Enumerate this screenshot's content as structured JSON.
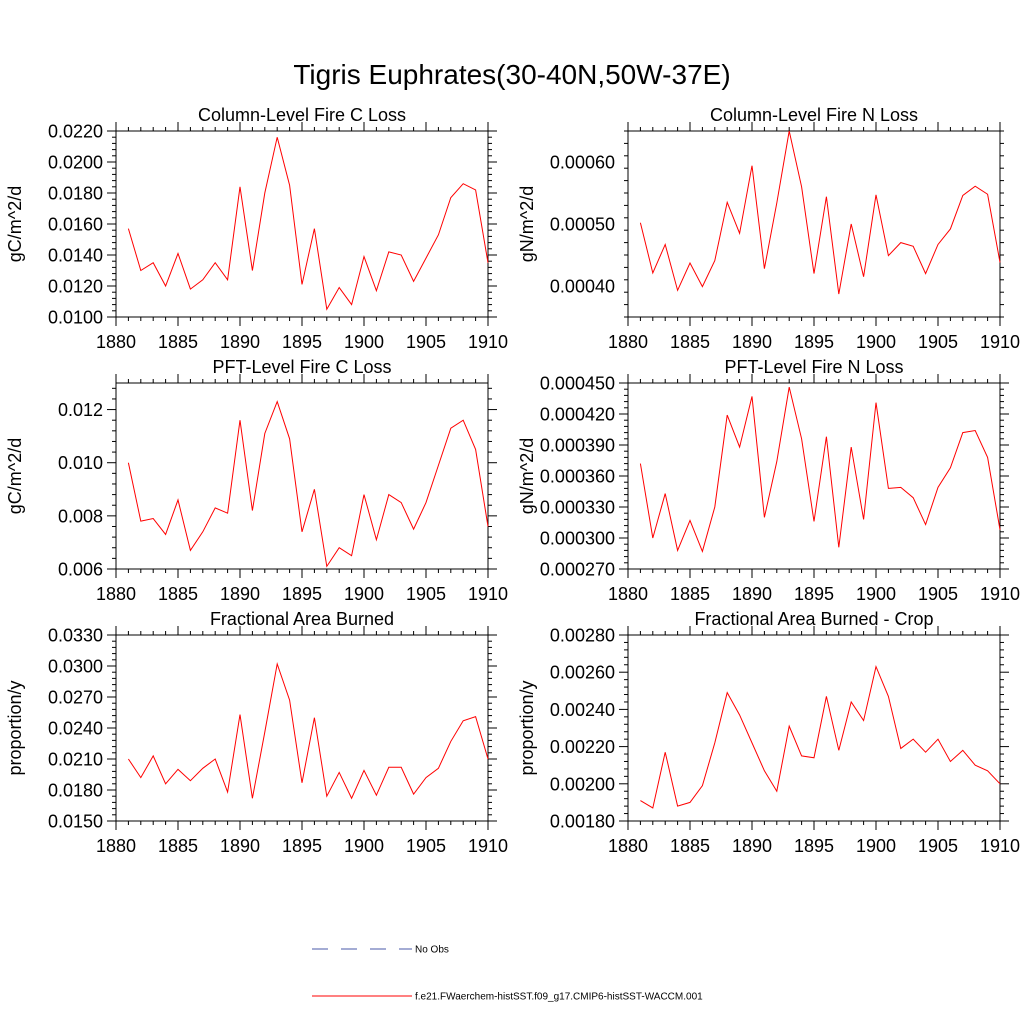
{
  "page": {
    "title": "Tigris Euphrates(30-40N,50W-37E)"
  },
  "legend": {
    "items": [
      {
        "label": "No Obs",
        "style": "dashed",
        "color": "#4a5aa8"
      },
      {
        "label": "f.e21.FWaerchem-histSST.f09_g17.CMIP6-histSST-WACCM.001",
        "style": "solid",
        "color": "#ff0000"
      }
    ]
  },
  "chart_data": [
    {
      "type": "line",
      "title": "Column-Level Fire C Loss",
      "ylabel": "gC/m^2/d",
      "xlim": [
        1880,
        1910
      ],
      "ylim": [
        0.01,
        0.022
      ],
      "xticks": [
        "1880",
        "1885",
        "1890",
        "1895",
        "1900",
        "1905",
        "1910"
      ],
      "yticks": [
        "0.0100",
        "0.0120",
        "0.0140",
        "0.0160",
        "0.0180",
        "0.0200",
        "0.0220"
      ],
      "x": [
        1881,
        1882,
        1883,
        1884,
        1885,
        1886,
        1887,
        1888,
        1889,
        1890,
        1891,
        1892,
        1893,
        1894,
        1895,
        1896,
        1897,
        1898,
        1899,
        1900,
        1901,
        1902,
        1903,
        1904,
        1905,
        1906,
        1907,
        1908,
        1909,
        1910
      ],
      "series": [
        {
          "color": "#ff0000",
          "values": [
            0.0157,
            0.013,
            0.0135,
            0.012,
            0.0141,
            0.0118,
            0.0124,
            0.0135,
            0.0124,
            0.0184,
            0.013,
            0.018,
            0.0216,
            0.0185,
            0.0121,
            0.0157,
            0.0105,
            0.0119,
            0.0108,
            0.0139,
            0.0117,
            0.0142,
            0.014,
            0.0123,
            0.0138,
            0.0153,
            0.0177,
            0.0186,
            0.0182,
            0.0135
          ]
        }
      ]
    },
    {
      "type": "line",
      "title": "Column-Level Fire N Loss",
      "ylabel": "gN/m^2/d",
      "xlim": [
        1880,
        1910
      ],
      "ylim": [
        0.00035,
        0.00065
      ],
      "xticks": [
        "1880",
        "1885",
        "1890",
        "1895",
        "1900",
        "1905",
        "1910"
      ],
      "yticks": [
        "0.00040",
        "0.00050",
        "0.00060"
      ],
      "x": [
        1881,
        1882,
        1883,
        1884,
        1885,
        1886,
        1887,
        1888,
        1889,
        1890,
        1891,
        1892,
        1893,
        1894,
        1895,
        1896,
        1897,
        1898,
        1899,
        1900,
        1901,
        1902,
        1903,
        1904,
        1905,
        1906,
        1907,
        1908,
        1909,
        1910
      ],
      "series": [
        {
          "color": "#ff0000",
          "values": [
            0.000502,
            0.000421,
            0.000467,
            0.000393,
            0.000437,
            0.000399,
            0.000441,
            0.000535,
            0.000485,
            0.000594,
            0.000428,
            0.000534,
            0.00065,
            0.00056,
            0.00042,
            0.000544,
            0.000387,
            0.0005,
            0.000415,
            0.000547,
            0.000449,
            0.00047,
            0.000464,
            0.00042,
            0.000467,
            0.000492,
            0.000546,
            0.000561,
            0.000548,
            0.000438
          ]
        }
      ]
    },
    {
      "type": "line",
      "title": "PFT-Level Fire C Loss",
      "ylabel": "gC/m^2/d",
      "xlim": [
        1880,
        1910
      ],
      "ylim": [
        0.006,
        0.013
      ],
      "xticks": [
        "1880",
        "1885",
        "1890",
        "1895",
        "1900",
        "1905",
        "1910"
      ],
      "yticks": [
        "0.006",
        "0.008",
        "0.010",
        "0.012"
      ],
      "x": [
        1881,
        1882,
        1883,
        1884,
        1885,
        1886,
        1887,
        1888,
        1889,
        1890,
        1891,
        1892,
        1893,
        1894,
        1895,
        1896,
        1897,
        1898,
        1899,
        1900,
        1901,
        1902,
        1903,
        1904,
        1905,
        1906,
        1907,
        1908,
        1909,
        1910
      ],
      "series": [
        {
          "color": "#ff0000",
          "values": [
            0.01,
            0.0078,
            0.0079,
            0.0073,
            0.0086,
            0.0067,
            0.0074,
            0.0083,
            0.0081,
            0.0116,
            0.0082,
            0.0111,
            0.0123,
            0.0109,
            0.0074,
            0.009,
            0.0061,
            0.0068,
            0.0065,
            0.0088,
            0.0071,
            0.0088,
            0.0085,
            0.0075,
            0.0085,
            0.0099,
            0.0113,
            0.0116,
            0.0105,
            0.0076
          ]
        }
      ]
    },
    {
      "type": "line",
      "title": "PFT-Level Fire N Loss",
      "ylabel": "gN/m^2/d",
      "xlim": [
        1880,
        1910
      ],
      "ylim": [
        0.00027,
        0.00045
      ],
      "xticks": [
        "1880",
        "1885",
        "1890",
        "1895",
        "1900",
        "1905",
        "1910"
      ],
      "yticks": [
        "0.000270",
        "0.000300",
        "0.000330",
        "0.000360",
        "0.000390",
        "0.000420",
        "0.000450"
      ],
      "x": [
        1881,
        1882,
        1883,
        1884,
        1885,
        1886,
        1887,
        1888,
        1889,
        1890,
        1891,
        1892,
        1893,
        1894,
        1895,
        1896,
        1897,
        1898,
        1899,
        1900,
        1901,
        1902,
        1903,
        1904,
        1905,
        1906,
        1907,
        1908,
        1909,
        1910
      ],
      "series": [
        {
          "color": "#ff0000",
          "values": [
            0.000372,
            0.0003,
            0.000343,
            0.000288,
            0.000317,
            0.000287,
            0.00033,
            0.000419,
            0.000388,
            0.000437,
            0.00032,
            0.000374,
            0.000446,
            0.000396,
            0.000316,
            0.000398,
            0.000291,
            0.000388,
            0.000318,
            0.000431,
            0.000348,
            0.000349,
            0.000339,
            0.000313,
            0.000349,
            0.000368,
            0.000402,
            0.000404,
            0.000378,
            0.000308
          ]
        }
      ]
    },
    {
      "type": "line",
      "title": "Fractional Area Burned",
      "ylabel": "proportion/y",
      "xlim": [
        1880,
        1910
      ],
      "ylim": [
        0.015,
        0.033
      ],
      "xticks": [
        "1880",
        "1885",
        "1890",
        "1895",
        "1900",
        "1905",
        "1910"
      ],
      "yticks": [
        "0.0150",
        "0.0180",
        "0.0210",
        "0.0240",
        "0.0270",
        "0.0300",
        "0.0330"
      ],
      "x": [
        1881,
        1882,
        1883,
        1884,
        1885,
        1886,
        1887,
        1888,
        1889,
        1890,
        1891,
        1892,
        1893,
        1894,
        1895,
        1896,
        1897,
        1898,
        1899,
        1900,
        1901,
        1902,
        1903,
        1904,
        1905,
        1906,
        1907,
        1908,
        1909,
        1910
      ],
      "series": [
        {
          "color": "#ff0000",
          "values": [
            0.021,
            0.0192,
            0.0213,
            0.0186,
            0.02,
            0.0189,
            0.0201,
            0.021,
            0.0178,
            0.0253,
            0.0172,
            0.0236,
            0.0302,
            0.0267,
            0.0187,
            0.025,
            0.0174,
            0.0197,
            0.0172,
            0.0199,
            0.0175,
            0.0202,
            0.0202,
            0.0176,
            0.0192,
            0.0201,
            0.0227,
            0.0247,
            0.0251,
            0.021
          ]
        }
      ]
    },
    {
      "type": "line",
      "title": "Fractional Area Burned - Crop",
      "ylabel": "proportion/y",
      "xlim": [
        1880,
        1910
      ],
      "ylim": [
        0.0018,
        0.0028
      ],
      "xticks": [
        "1880",
        "1885",
        "1890",
        "1895",
        "1900",
        "1905",
        "1910"
      ],
      "yticks": [
        "0.00180",
        "0.00200",
        "0.00220",
        "0.00240",
        "0.00260",
        "0.00280"
      ],
      "x": [
        1881,
        1882,
        1883,
        1884,
        1885,
        1886,
        1887,
        1888,
        1889,
        1890,
        1891,
        1892,
        1893,
        1894,
        1895,
        1896,
        1897,
        1898,
        1899,
        1900,
        1901,
        1902,
        1903,
        1904,
        1905,
        1906,
        1907,
        1908,
        1909,
        1910
      ],
      "series": [
        {
          "color": "#ff0000",
          "values": [
            0.00191,
            0.00187,
            0.00217,
            0.00188,
            0.0019,
            0.00199,
            0.00222,
            0.00249,
            0.00237,
            0.00222,
            0.00207,
            0.00196,
            0.00231,
            0.00215,
            0.00214,
            0.00247,
            0.00218,
            0.00244,
            0.00234,
            0.00263,
            0.00247,
            0.00219,
            0.00224,
            0.00217,
            0.00224,
            0.00212,
            0.00218,
            0.0021,
            0.00207,
            0.002
          ]
        }
      ]
    }
  ]
}
